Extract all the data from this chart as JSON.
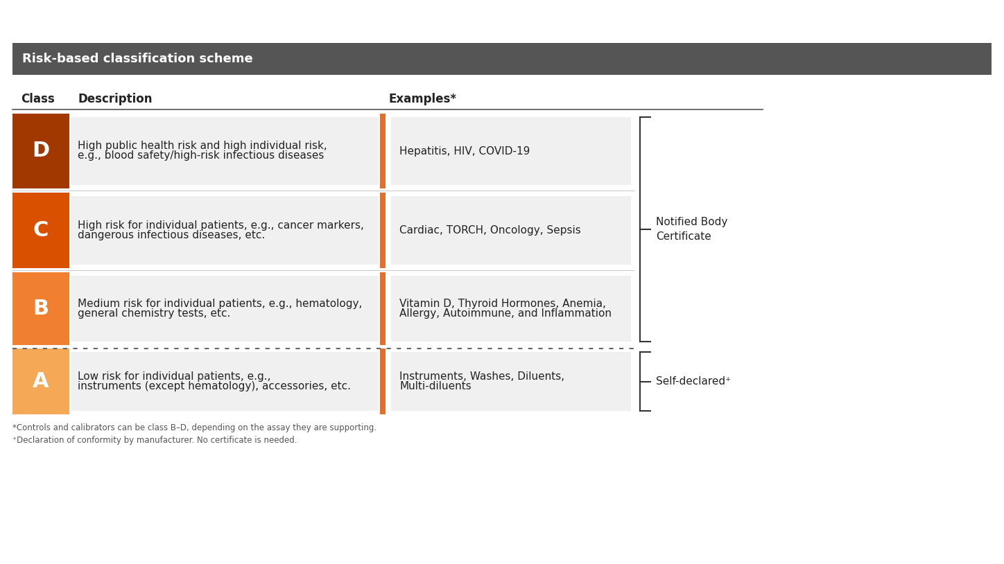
{
  "title": "Risk-based classification scheme",
  "title_bg": "#555555",
  "title_text_color": "#ffffff",
  "header_class": "Class",
  "header_desc": "Description",
  "header_examples": "Examples*",
  "rows": [
    {
      "class": "D",
      "class_color": "#A03800",
      "desc_line1": "High public health risk and high individual risk,",
      "desc_line2": "e.g., blood safety/high-risk infectious diseases",
      "example_line1": "Hepatitis, HIV, COVID-19",
      "example_line2": ""
    },
    {
      "class": "C",
      "class_color": "#D95000",
      "desc_line1": "High risk for individual patients, e.g., cancer markers,",
      "desc_line2": "dangerous infectious diseases, etc.",
      "example_line1": "Cardiac, TORCH, Oncology, Sepsis",
      "example_line2": ""
    },
    {
      "class": "B",
      "class_color": "#F08030",
      "desc_line1": "Medium risk for individual patients, e.g., hematology,",
      "desc_line2": "general chemistry tests, etc.",
      "example_line1": "Vitamin D, Thyroid Hormones, Anemia,",
      "example_line2": "Allergy, Autoimmune, and Inflammation"
    },
    {
      "class": "A",
      "class_color": "#F5A855",
      "desc_line1": "Low risk for individual patients, e.g.,",
      "desc_line2": "instruments (except hematology), accessories, etc.",
      "example_line1": "Instruments, Washes, Diluents,",
      "example_line2": "Multi-diluents"
    }
  ],
  "bracket_label_top": "Notified Body\nCertificate",
  "bracket_label_bottom": "Self-declared⁺",
  "footnote1": "*Controls and calibrators can be class B–D, depending on the assay they are supporting.",
  "footnote2": "⁺Declaration of conformity by manufacturer. No certificate is needed.",
  "bg_color": "#ffffff",
  "row_bg": "#f0f0f0",
  "separator_color": "#cccccc",
  "orange_bar_color": "#E07030",
  "text_color": "#222222",
  "fig_width": 14.48,
  "fig_height": 8.14,
  "dpi": 100
}
